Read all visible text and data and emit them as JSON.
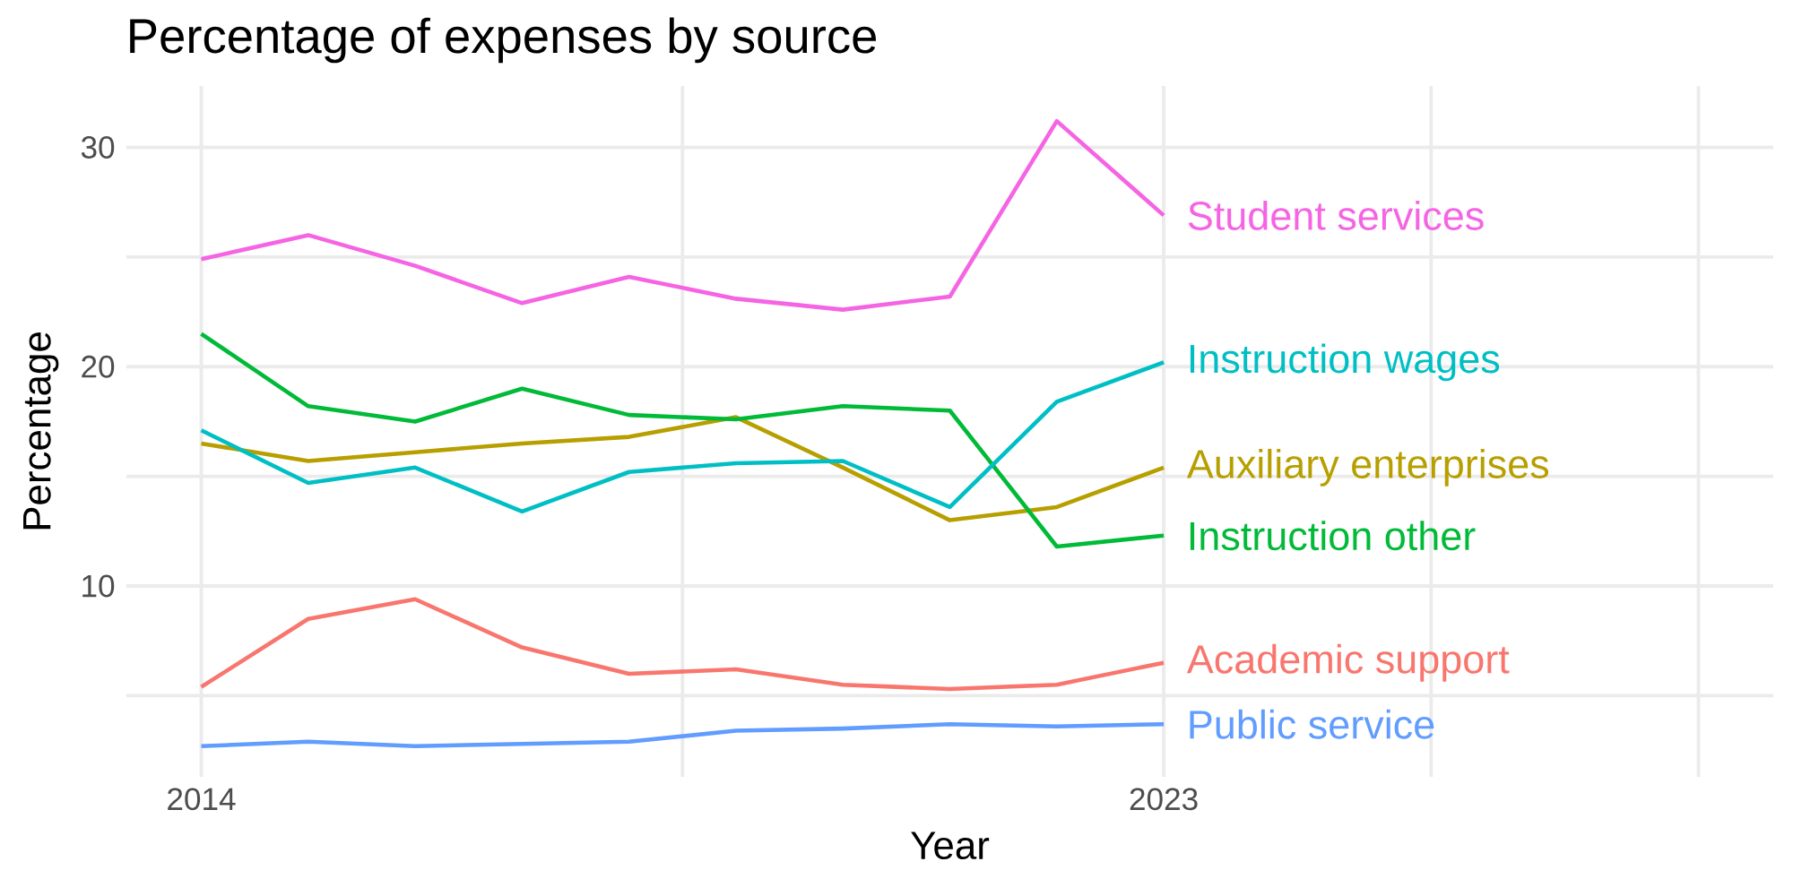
{
  "chart_data": {
    "type": "line",
    "title": "Percentage of expenses by source",
    "xlabel": "Year",
    "ylabel": "Percentage",
    "x": [
      2014,
      2015,
      2016,
      2017,
      2018,
      2019,
      2020,
      2021,
      2022,
      2023
    ],
    "series": [
      {
        "name": "Academic support",
        "color": "#F8766D",
        "values": [
          5.4,
          8.5,
          9.4,
          7.2,
          6.0,
          6.2,
          5.5,
          5.3,
          5.5,
          6.5
        ]
      },
      {
        "name": "Auxiliary enterprises",
        "color": "#B79F00",
        "values": [
          16.5,
          15.7,
          16.1,
          16.5,
          16.8,
          17.7,
          15.4,
          13.0,
          13.6,
          15.4
        ]
      },
      {
        "name": "Instruction other",
        "color": "#00BA38",
        "values": [
          21.5,
          18.2,
          17.5,
          19.0,
          17.8,
          17.6,
          18.2,
          18.0,
          11.8,
          12.3
        ]
      },
      {
        "name": "Instruction wages",
        "color": "#00BFC4",
        "values": [
          17.1,
          14.7,
          15.4,
          13.4,
          15.2,
          15.6,
          15.7,
          13.6,
          18.4,
          20.2
        ]
      },
      {
        "name": "Public service",
        "color": "#619CFF",
        "values": [
          2.7,
          2.9,
          2.7,
          2.8,
          2.9,
          3.4,
          3.5,
          3.7,
          3.6,
          3.7
        ]
      },
      {
        "name": "Student services",
        "color": "#F564E3",
        "values": [
          24.9,
          26.0,
          24.6,
          22.9,
          24.1,
          23.1,
          22.6,
          23.2,
          31.2,
          26.9
        ]
      }
    ],
    "xlim": [
      2013.3,
      2028.7
    ],
    "ylim": [
      1.3,
      32.8
    ],
    "xticks": [
      2014,
      {
        "value": 2018.5,
        "label": null
      },
      2023,
      {
        "value": 2025.5,
        "label": null
      },
      {
        "value": 2028,
        "label": null
      }
    ],
    "yticks": [
      {
        "value": 5,
        "label": null
      },
      10,
      {
        "value": 15,
        "label": null
      },
      20,
      {
        "value": 25,
        "label": null
      },
      30
    ],
    "grid": true,
    "legend": false,
    "marker": "none",
    "line_style": "solid"
  }
}
